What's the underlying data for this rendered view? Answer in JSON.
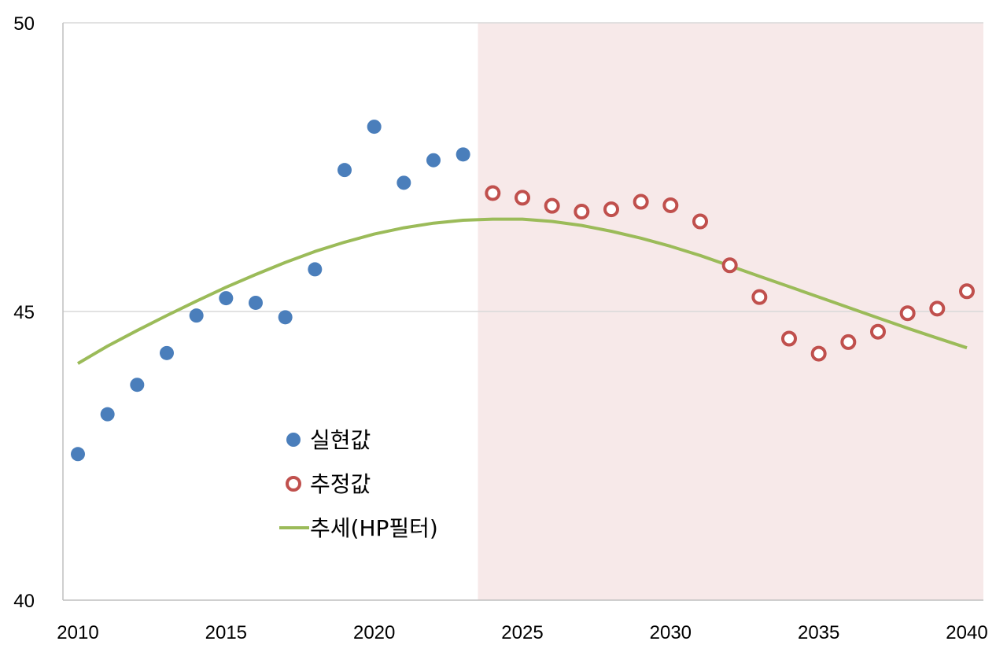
{
  "chart_data": {
    "type": "scatter",
    "x_range": [
      2010,
      2040
    ],
    "ylim": [
      40,
      50
    ],
    "y_ticks": [
      40,
      45,
      50
    ],
    "x_ticks": [
      2010,
      2015,
      2020,
      2025,
      2030,
      2035,
      2040
    ],
    "grid": true,
    "forecast_region": [
      2023.5,
      2040.5
    ],
    "legend_position": "center-left",
    "series": [
      {
        "name": "실현값",
        "kind": "filled-marker",
        "color": "#4a7ebb",
        "points": [
          [
            2010,
            42.53
          ],
          [
            2011,
            43.22
          ],
          [
            2012,
            43.73
          ],
          [
            2013,
            44.28
          ],
          [
            2014,
            44.93
          ],
          [
            2015,
            45.23
          ],
          [
            2016,
            45.15
          ],
          [
            2017,
            44.9
          ],
          [
            2018,
            45.73
          ],
          [
            2019,
            47.45
          ],
          [
            2020,
            48.2
          ],
          [
            2021,
            47.23
          ],
          [
            2022,
            47.62
          ],
          [
            2023,
            47.72
          ]
        ]
      },
      {
        "name": "추정값",
        "kind": "hollow-marker",
        "color": "#c0504d",
        "points": [
          [
            2024,
            47.05
          ],
          [
            2025,
            46.97
          ],
          [
            2026,
            46.83
          ],
          [
            2027,
            46.73
          ],
          [
            2028,
            46.77
          ],
          [
            2029,
            46.9
          ],
          [
            2030,
            46.84
          ],
          [
            2031,
            46.56
          ],
          [
            2032,
            45.8
          ],
          [
            2033,
            45.25
          ],
          [
            2034,
            44.53
          ],
          [
            2035,
            44.27
          ],
          [
            2036,
            44.47
          ],
          [
            2037,
            44.65
          ],
          [
            2038,
            44.97
          ],
          [
            2039,
            45.05
          ],
          [
            2040,
            45.35
          ]
        ]
      },
      {
        "name": "추세(HP필터)",
        "kind": "line",
        "color": "#9bbb59",
        "points": [
          [
            2010,
            44.1
          ],
          [
            2011,
            44.4
          ],
          [
            2012,
            44.67
          ],
          [
            2013,
            44.93
          ],
          [
            2014,
            45.18
          ],
          [
            2015,
            45.42
          ],
          [
            2016,
            45.64
          ],
          [
            2017,
            45.85
          ],
          [
            2018,
            46.04
          ],
          [
            2019,
            46.2
          ],
          [
            2020,
            46.34
          ],
          [
            2021,
            46.45
          ],
          [
            2022,
            46.53
          ],
          [
            2023,
            46.58
          ],
          [
            2024,
            46.6
          ],
          [
            2025,
            46.6
          ],
          [
            2026,
            46.56
          ],
          [
            2027,
            46.49
          ],
          [
            2028,
            46.39
          ],
          [
            2029,
            46.27
          ],
          [
            2030,
            46.13
          ],
          [
            2031,
            45.97
          ],
          [
            2032,
            45.79
          ],
          [
            2033,
            45.61
          ],
          [
            2034,
            45.43
          ],
          [
            2035,
            45.25
          ],
          [
            2036,
            45.07
          ],
          [
            2037,
            44.89
          ],
          [
            2038,
            44.71
          ],
          [
            2039,
            44.54
          ],
          [
            2040,
            44.37
          ]
        ]
      }
    ]
  },
  "colors": {
    "actual": "#4a7ebb",
    "forecast": "#c0504d",
    "trend": "#9bbb59",
    "forecast_band": "#f7e9e9",
    "grid": "#d9d9d9",
    "axis": "#bfbfbf"
  }
}
